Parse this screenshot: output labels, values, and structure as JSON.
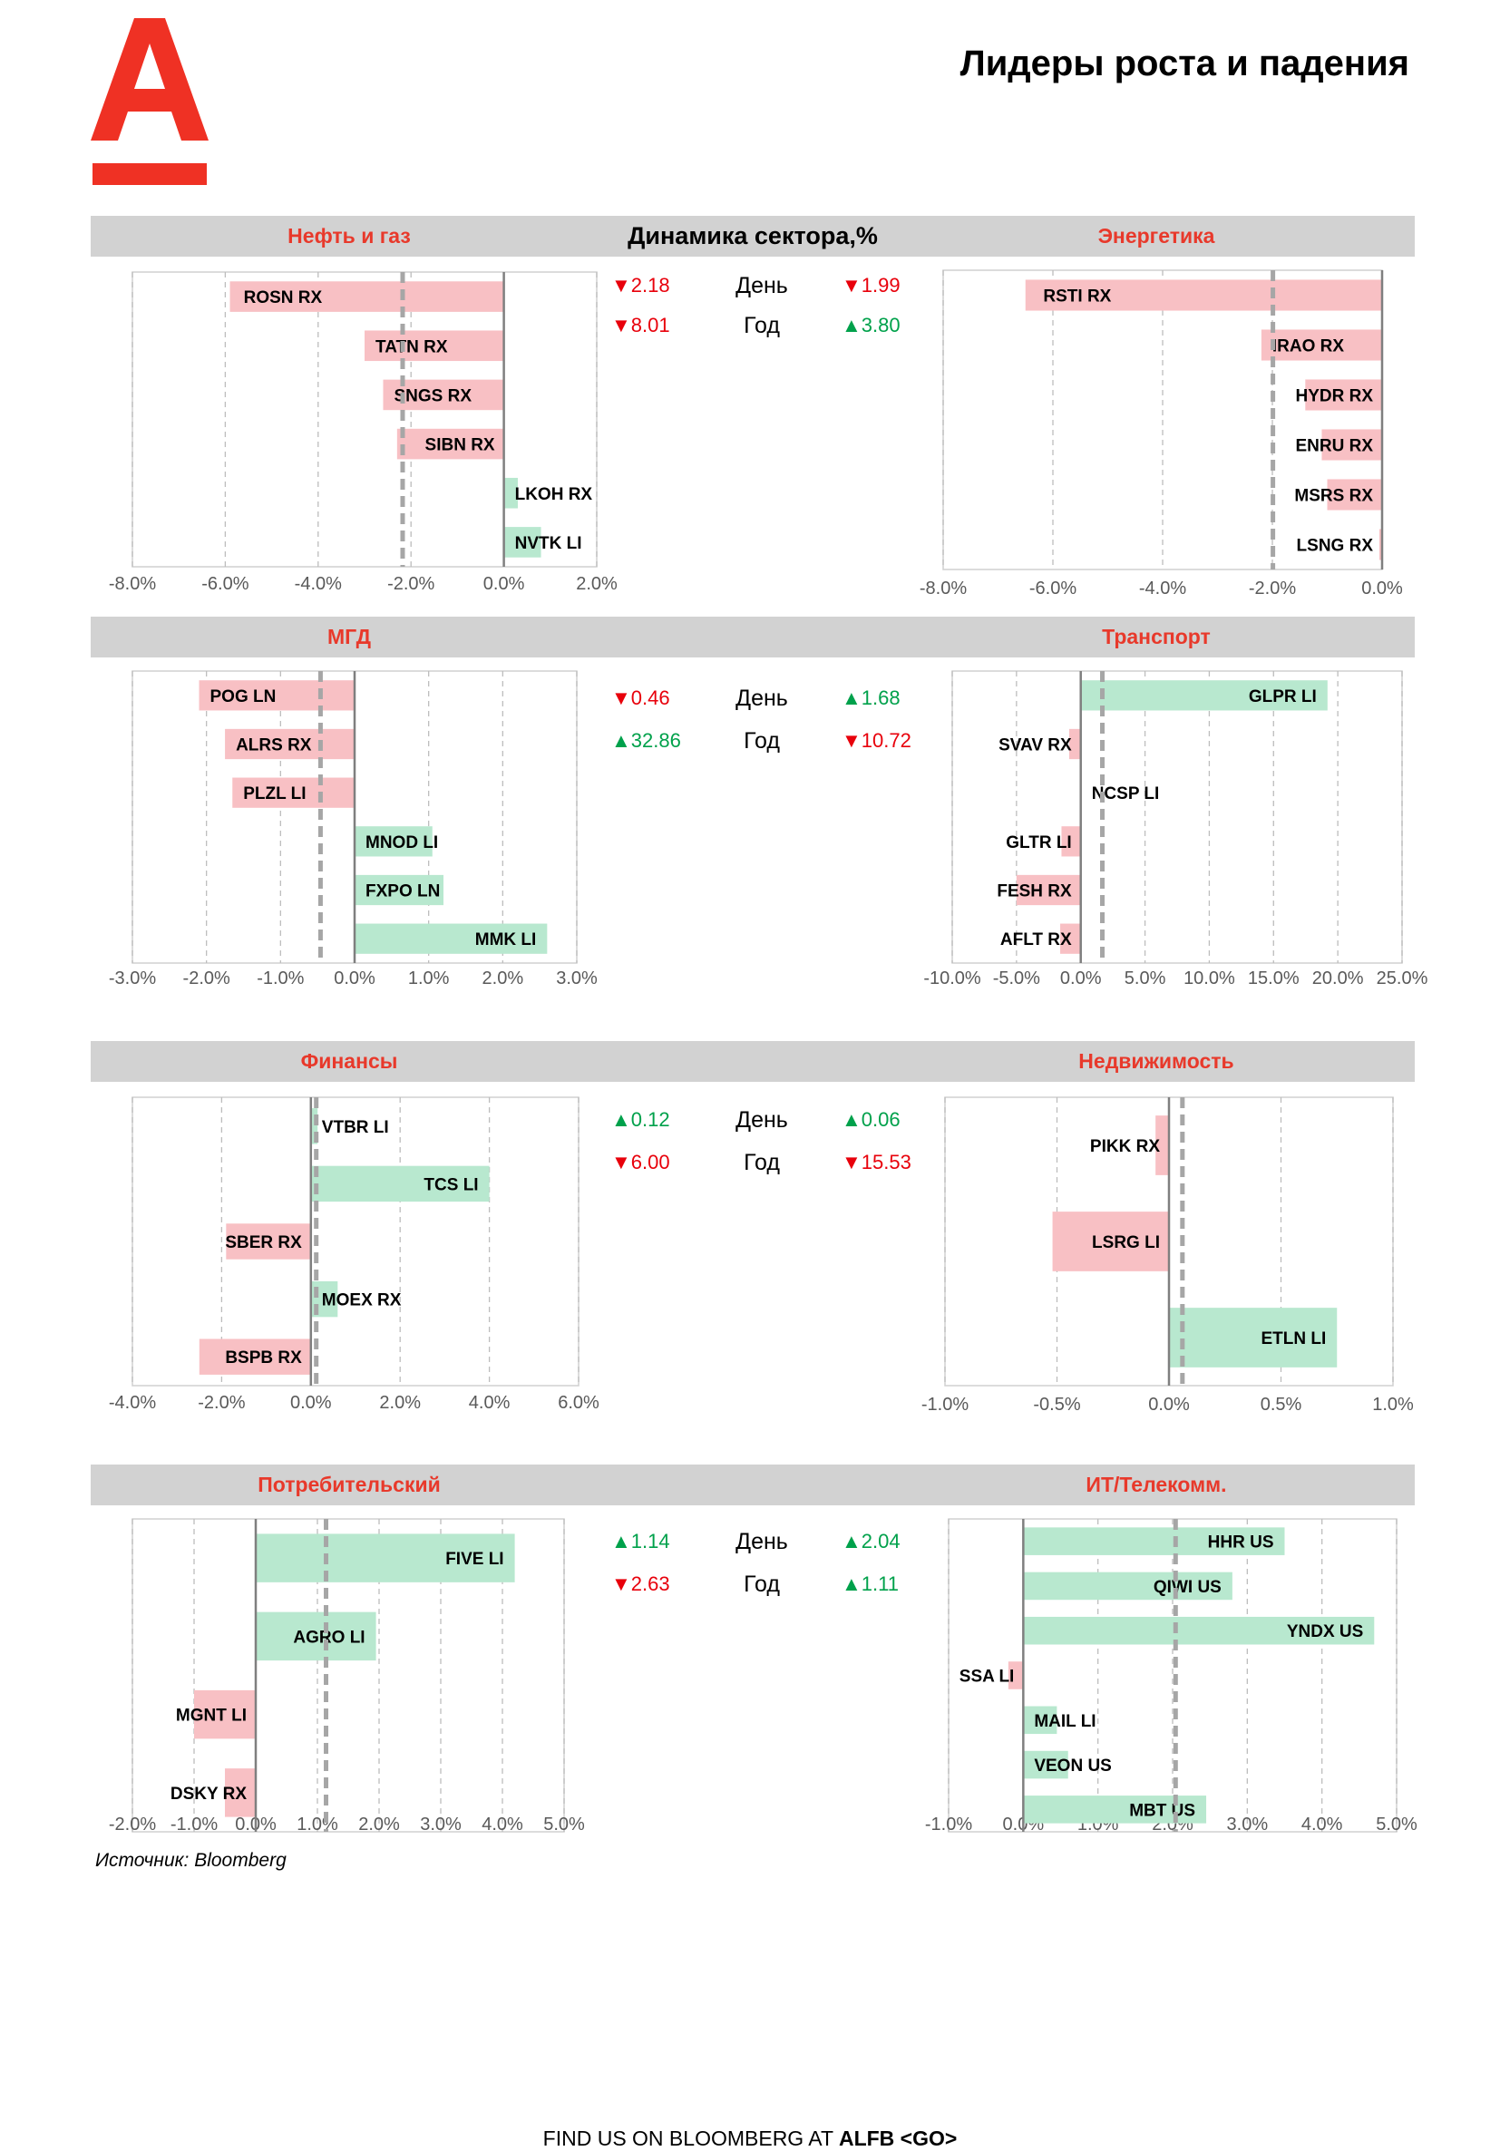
{
  "header": {
    "title": "Лидеры роста и падения"
  },
  "dynamics_title": "Динамика сектора,%",
  "day_label": "День",
  "year_label": "Год",
  "source": "Источник: Bloomberg",
  "footer": {
    "text": "FIND US ON BLOOMBERG AT ",
    "bold": "ALFB <GO>"
  },
  "colors": {
    "brand": "#ef3124",
    "positive_bar": "#b8e8cf",
    "negative_bar": "#f8c0c4",
    "positive_text": "#00a14b",
    "negative_text": "#e8000b"
  },
  "rows": [
    {
      "left_name": "Нефть и газ",
      "right_name": "Энергетика",
      "left_day": {
        "dir": "down",
        "value": "2.18"
      },
      "right_day": {
        "dir": "down",
        "value": "1.99"
      },
      "left_year": {
        "dir": "down",
        "value": "8.01"
      },
      "right_year": {
        "dir": "up",
        "value": "3.80"
      }
    },
    {
      "left_name": "МГД",
      "right_name": "Транспорт",
      "left_day": {
        "dir": "down",
        "value": "0.46"
      },
      "right_day": {
        "dir": "up",
        "value": "1.68"
      },
      "left_year": {
        "dir": "up",
        "value": "32.86"
      },
      "right_year": {
        "dir": "down",
        "value": "10.72"
      }
    },
    {
      "left_name": "Финансы",
      "right_name": "Недвижимость",
      "left_day": {
        "dir": "up",
        "value": "0.12"
      },
      "right_day": {
        "dir": "up",
        "value": "0.06"
      },
      "left_year": {
        "dir": "down",
        "value": "6.00"
      },
      "right_year": {
        "dir": "down",
        "value": "15.53"
      }
    },
    {
      "left_name": "Потребительский",
      "right_name": "ИТ/Телекомм.",
      "left_day": {
        "dir": "up",
        "value": "1.14"
      },
      "right_day": {
        "dir": "up",
        "value": "2.04"
      },
      "left_year": {
        "dir": "down",
        "value": "2.63"
      },
      "right_year": {
        "dir": "up",
        "value": "1.11"
      }
    }
  ],
  "chart_data": [
    {
      "sector": "Нефть и газ",
      "type": "bar",
      "orientation": "horizontal",
      "xlim": [
        -8,
        2
      ],
      "xticks": [
        -8,
        -6,
        -4,
        -2,
        0,
        2
      ],
      "tick_labels": [
        "-8.0%",
        "-6.0%",
        "-4.0%",
        "-2.0%",
        "0.0%",
        "2.0%"
      ],
      "sector_avg": -2.18,
      "bars": [
        {
          "label": "ROSN RX",
          "value": -5.9
        },
        {
          "label": "TATN RX",
          "value": -3.0
        },
        {
          "label": "SNGS RX",
          "value": -2.6
        },
        {
          "label": "SIBN RX",
          "value": -2.3
        },
        {
          "label": "LKOH RX",
          "value": 0.3
        },
        {
          "label": "NVTK LI",
          "value": 0.8
        }
      ]
    },
    {
      "sector": "Энергетика",
      "type": "bar",
      "orientation": "horizontal",
      "xlim": [
        -8,
        0
      ],
      "xticks": [
        -8,
        -6,
        -4,
        -2,
        0
      ],
      "tick_labels": [
        "-8.0%",
        "-6.0%",
        "-4.0%",
        "-2.0%",
        "0.0%"
      ],
      "sector_avg": -1.99,
      "bars": [
        {
          "label": "RSTI RX",
          "value": -6.5
        },
        {
          "label": "IRAO RX",
          "value": -2.2
        },
        {
          "label": "HYDR RX",
          "value": -1.4
        },
        {
          "label": "ENRU RX",
          "value": -1.1
        },
        {
          "label": "MSRS RX",
          "value": -1.0
        },
        {
          "label": "LSNG RX",
          "value": -0.05
        }
      ]
    },
    {
      "sector": "МГД",
      "type": "bar",
      "orientation": "horizontal",
      "xlim": [
        -3,
        3
      ],
      "xticks": [
        -3,
        -2,
        -1,
        0,
        1,
        2,
        3
      ],
      "tick_labels": [
        "-3.0%",
        "-2.0%",
        "-1.0%",
        "0.0%",
        "1.0%",
        "2.0%",
        "3.0%"
      ],
      "sector_avg": -0.46,
      "bars": [
        {
          "label": "POG LN",
          "value": -2.1
        },
        {
          "label": "ALRS RX",
          "value": -1.75
        },
        {
          "label": "PLZL LI",
          "value": -1.65
        },
        {
          "label": "MNOD LI",
          "value": 1.05
        },
        {
          "label": "FXPO LN",
          "value": 1.2
        },
        {
          "label": "MMK LI",
          "value": 2.6
        }
      ]
    },
    {
      "sector": "Транспорт",
      "type": "bar",
      "orientation": "horizontal",
      "xlim": [
        -10,
        25
      ],
      "xticks": [
        -10,
        -5,
        0,
        5,
        10,
        15,
        20,
        25
      ],
      "tick_labels": [
        "-10.0%",
        "-5.0%",
        "0.0%",
        "5.0%",
        "10.0%",
        "15.0%",
        "20.0%",
        "25.0%"
      ],
      "sector_avg": 1.68,
      "bars": [
        {
          "label": "GLPR LI",
          "value": 19.2
        },
        {
          "label": "SVAV RX",
          "value": -0.9
        },
        {
          "label": "NCSP LI",
          "value": 0.0
        },
        {
          "label": "GLTR LI",
          "value": -1.5
        },
        {
          "label": "FESH RX",
          "value": -5.0
        },
        {
          "label": "AFLT RX",
          "value": -1.6
        }
      ]
    },
    {
      "sector": "Финансы",
      "type": "bar",
      "orientation": "horizontal",
      "xlim": [
        -4,
        6
      ],
      "xticks": [
        -4,
        -2,
        0,
        2,
        4,
        6
      ],
      "tick_labels": [
        "-4.0%",
        "-2.0%",
        "0.0%",
        "2.0%",
        "4.0%",
        "6.0%"
      ],
      "sector_avg": 0.12,
      "bars": [
        {
          "label": "VTBR LI",
          "value": 0.15
        },
        {
          "label": "TCS LI",
          "value": 4.0
        },
        {
          "label": "SBER RX",
          "value": -1.9
        },
        {
          "label": "MOEX RX",
          "value": 0.6
        },
        {
          "label": "BSPB RX",
          "value": -2.5
        }
      ]
    },
    {
      "sector": "Недвижимость",
      "type": "bar",
      "orientation": "horizontal",
      "xlim": [
        -1,
        1
      ],
      "xticks": [
        -1,
        -0.5,
        0,
        0.5,
        1
      ],
      "tick_labels": [
        "-1.0%",
        "-0.5%",
        "0.0%",
        "0.5%",
        "1.0%"
      ],
      "sector_avg": 0.06,
      "bars": [
        {
          "label": "PIKK RX",
          "value": -0.06
        },
        {
          "label": "LSRG LI",
          "value": -0.52
        },
        {
          "label": "ETLN LI",
          "value": 0.75
        }
      ]
    },
    {
      "sector": "Потребительский",
      "type": "bar",
      "orientation": "horizontal",
      "xlim": [
        -2,
        5
      ],
      "xticks": [
        -2,
        -1,
        0,
        1,
        2,
        3,
        4,
        5
      ],
      "tick_labels": [
        "-2.0%",
        "-1.0%",
        "0.0%",
        "1.0%",
        "2.0%",
        "3.0%",
        "4.0%",
        "5.0%"
      ],
      "sector_avg": 1.14,
      "bars": [
        {
          "label": "FIVE LI",
          "value": 4.2
        },
        {
          "label": "AGRO LI",
          "value": 1.95
        },
        {
          "label": "MGNT LI",
          "value": -1.0
        },
        {
          "label": "DSKY RX",
          "value": -0.5
        }
      ]
    },
    {
      "sector": "ИТ/Телекомм.",
      "type": "bar",
      "orientation": "horizontal",
      "xlim": [
        -1,
        5
      ],
      "xticks": [
        -1,
        0,
        1,
        2,
        3,
        4,
        5
      ],
      "tick_labels": [
        "-1.0%",
        "0.0%",
        "1.0%",
        "2.0%",
        "3.0%",
        "4.0%",
        "5.0%"
      ],
      "sector_avg": 2.04,
      "bars": [
        {
          "label": "HHR US",
          "value": 3.5
        },
        {
          "label": "QIWI US",
          "value": 2.8
        },
        {
          "label": "YNDX US",
          "value": 4.7
        },
        {
          "label": "SSA LI",
          "value": -0.2
        },
        {
          "label": "MAIL LI",
          "value": 0.45
        },
        {
          "label": "VEON US",
          "value": 0.6
        },
        {
          "label": "MBT US",
          "value": 2.45
        }
      ]
    }
  ]
}
